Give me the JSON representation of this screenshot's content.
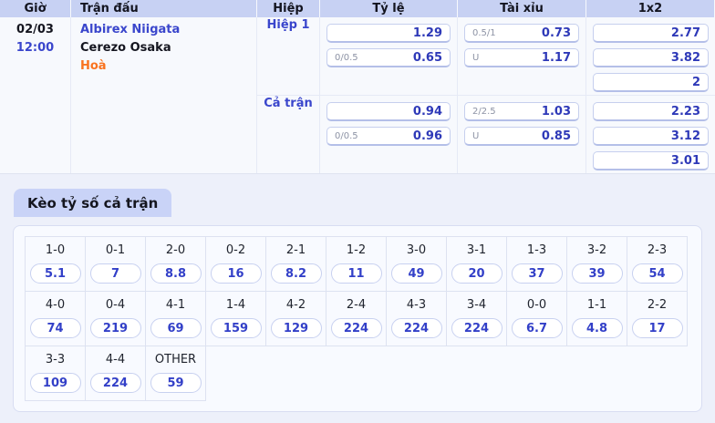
{
  "colors": {
    "accent_blue": "#3a46cc",
    "value_blue": "#2e39b8",
    "draw_orange": "#f9731f",
    "header_bg": "#c7d1f3",
    "page_bg": "#edf0fa"
  },
  "match_table": {
    "header": {
      "time": "Giờ",
      "match": "Trận đấu",
      "period": "Hiệp",
      "rate": "Tỷ lệ",
      "over_under": "Tài xỉu",
      "one_x_two": "1x2"
    },
    "date": "02/03",
    "time": "12:00",
    "home_team": "Albirex Niigata",
    "away_team": "Cerezo Osaka",
    "draw_label": "Hoà",
    "sections": [
      {
        "period": "Hiệp 1",
        "rate": [
          {
            "label": "",
            "value": "1.29"
          },
          {
            "label": "0/0.5",
            "value": "0.65"
          }
        ],
        "over_under": [
          {
            "label": "0.5/1",
            "value": "0.73"
          },
          {
            "label": "U",
            "value": "1.17"
          }
        ],
        "one_x_two": [
          "2.77",
          "3.82",
          "2"
        ]
      },
      {
        "period": "Cả trận",
        "rate": [
          {
            "label": "",
            "value": "0.94"
          },
          {
            "label": "0/0.5",
            "value": "0.96"
          }
        ],
        "over_under": [
          {
            "label": "2/2.5",
            "value": "1.03"
          },
          {
            "label": "U",
            "value": "0.85"
          }
        ],
        "one_x_two": [
          "2.23",
          "3.12",
          "3.01"
        ]
      }
    ]
  },
  "score_section": {
    "title": "Kèo tỷ số cả trận",
    "columns": 11,
    "rows": [
      [
        {
          "score": "1-0",
          "odds": "5.1"
        },
        {
          "score": "0-1",
          "odds": "7"
        },
        {
          "score": "2-0",
          "odds": "8.8"
        },
        {
          "score": "0-2",
          "odds": "16"
        },
        {
          "score": "2-1",
          "odds": "8.2"
        },
        {
          "score": "1-2",
          "odds": "11"
        },
        {
          "score": "3-0",
          "odds": "49"
        },
        {
          "score": "3-1",
          "odds": "20"
        },
        {
          "score": "1-3",
          "odds": "37"
        },
        {
          "score": "3-2",
          "odds": "39"
        },
        {
          "score": "2-3",
          "odds": "54"
        }
      ],
      [
        {
          "score": "4-0",
          "odds": "74"
        },
        {
          "score": "0-4",
          "odds": "219"
        },
        {
          "score": "4-1",
          "odds": "69"
        },
        {
          "score": "1-4",
          "odds": "159"
        },
        {
          "score": "4-2",
          "odds": "129"
        },
        {
          "score": "2-4",
          "odds": "224"
        },
        {
          "score": "4-3",
          "odds": "224"
        },
        {
          "score": "3-4",
          "odds": "224"
        },
        {
          "score": "0-0",
          "odds": "6.7"
        },
        {
          "score": "1-1",
          "odds": "4.8"
        },
        {
          "score": "2-2",
          "odds": "17"
        }
      ],
      [
        {
          "score": "3-3",
          "odds": "109"
        },
        {
          "score": "4-4",
          "odds": "224"
        },
        {
          "score": "OTHER",
          "odds": "59"
        }
      ]
    ]
  }
}
